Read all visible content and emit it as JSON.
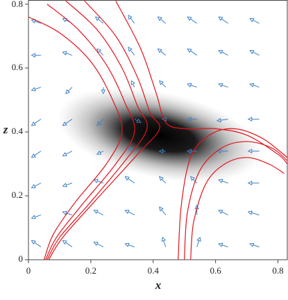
{
  "chart_data": {
    "type": "quiver",
    "xlabel": "x",
    "ylabel": "z",
    "xlim": [
      0,
      0.83
    ],
    "ylim": [
      0,
      0.813
    ],
    "xticks": [
      0,
      0.2,
      0.4,
      0.6,
      0.8
    ],
    "yticks": [
      0,
      0.2,
      0.4,
      0.6,
      0.8
    ],
    "density_peak": {
      "x": 0.42,
      "z": 0.39
    },
    "arrow_color": "#3f80c6",
    "streamline_color": "#e3121b",
    "arrows": {
      "x": [
        0.04,
        0.14,
        0.24,
        0.34,
        0.44,
        0.54,
        0.64,
        0.74,
        0.04,
        0.14,
        0.24,
        0.34,
        0.44,
        0.54,
        0.64,
        0.74,
        0.04,
        0.14,
        0.24,
        0.34,
        0.44,
        0.54,
        0.64,
        0.74,
        0.04,
        0.14,
        0.24,
        0.34,
        0.44,
        0.54,
        0.64,
        0.74,
        0.04,
        0.14,
        0.24,
        0.34,
        0.44,
        0.54,
        0.64,
        0.74,
        0.04,
        0.14,
        0.24,
        0.34,
        0.44,
        0.54,
        0.64,
        0.74,
        0.04,
        0.14,
        0.24,
        0.34,
        0.44,
        0.54,
        0.64,
        0.74,
        0.04,
        0.14,
        0.24,
        0.34,
        0.44,
        0.54,
        0.64,
        0.74
      ],
      "z": [
        0.04,
        0.04,
        0.04,
        0.04,
        0.04,
        0.04,
        0.04,
        0.04,
        0.14,
        0.14,
        0.14,
        0.14,
        0.14,
        0.14,
        0.14,
        0.14,
        0.24,
        0.24,
        0.24,
        0.24,
        0.24,
        0.24,
        0.24,
        0.24,
        0.34,
        0.34,
        0.34,
        0.34,
        0.34,
        0.34,
        0.34,
        0.34,
        0.44,
        0.44,
        0.44,
        0.44,
        0.44,
        0.44,
        0.44,
        0.44,
        0.54,
        0.54,
        0.54,
        0.54,
        0.54,
        0.54,
        0.54,
        0.54,
        0.64,
        0.64,
        0.64,
        0.64,
        0.64,
        0.64,
        0.64,
        0.64,
        0.74,
        0.74,
        0.74,
        0.74,
        0.74,
        0.74,
        0.74,
        0.74
      ],
      "u": [
        -0.03,
        -0.03,
        -0.03,
        -0.03,
        -0.01,
        0.01,
        -0.03,
        -0.03,
        -0.03,
        -0.03,
        -0.03,
        -0.03,
        -0.02,
        0.0,
        -0.03,
        -0.035,
        -0.03,
        -0.03,
        -0.03,
        -0.03,
        -0.02,
        -0.02,
        -0.03,
        -0.035,
        -0.03,
        -0.03,
        -0.02,
        -0.02,
        -0.02,
        -0.03,
        -0.035,
        -0.035,
        -0.03,
        -0.03,
        -0.02,
        0.02,
        -0.01,
        -0.03,
        -0.035,
        -0.035,
        -0.03,
        -0.02,
        0.0,
        -0.01,
        -0.02,
        -0.03,
        -0.03,
        -0.03,
        -0.03,
        -0.03,
        -0.02,
        -0.02,
        -0.025,
        -0.03,
        -0.03,
        -0.03,
        -0.03,
        -0.03,
        -0.025,
        -0.02,
        -0.025,
        -0.03,
        -0.03,
        -0.03
      ],
      "w": [
        0.02,
        0.02,
        0.015,
        0.01,
        0.03,
        0.03,
        0.01,
        0.01,
        -0.01,
        0.01,
        0.015,
        0.015,
        0.025,
        0.03,
        0.015,
        0.01,
        -0.015,
        -0.01,
        0.01,
        0.02,
        0.02,
        0.02,
        0.01,
        0.0,
        -0.02,
        -0.015,
        -0.01,
        0.01,
        0.0,
        0.0,
        0.0,
        0.0,
        -0.02,
        -0.02,
        -0.02,
        -0.01,
        0.0,
        0.0,
        -0.005,
        0.0,
        -0.01,
        -0.02,
        -0.02,
        0.02,
        0.02,
        0.01,
        0.01,
        0.01,
        0.0,
        0.01,
        0.02,
        0.025,
        0.02,
        0.02,
        0.015,
        0.015,
        0.01,
        0.015,
        0.02,
        0.025,
        0.02,
        0.02,
        0.02,
        0.015
      ]
    },
    "streamlines": [
      {
        "x": [
          0,
          0.1,
          0.2,
          0.27,
          0.3,
          0.25,
          0.15,
          0.08,
          0.05
        ],
        "z": [
          0.76,
          0.71,
          0.62,
          0.5,
          0.4,
          0.3,
          0.18,
          0.08,
          0
        ]
      },
      {
        "x": [
          0.06,
          0.16,
          0.25,
          0.31,
          0.34,
          0.28,
          0.17,
          0.09,
          0.055
        ],
        "z": [
          0.8,
          0.72,
          0.61,
          0.49,
          0.4,
          0.3,
          0.17,
          0.07,
          0
        ]
      },
      {
        "x": [
          0.12,
          0.22,
          0.3,
          0.35,
          0.38,
          0.31,
          0.19,
          0.1,
          0.06
        ],
        "z": [
          0.81,
          0.72,
          0.6,
          0.48,
          0.41,
          0.31,
          0.17,
          0.07,
          0
        ]
      },
      {
        "x": [
          0.18,
          0.28,
          0.35,
          0.39,
          0.42,
          0.35,
          0.21,
          0.11,
          0.065
        ],
        "z": [
          0.81,
          0.7,
          0.57,
          0.46,
          0.41,
          0.33,
          0.18,
          0.07,
          0
        ]
      },
      {
        "x": [
          0.28,
          0.36,
          0.41,
          0.44,
          0.5,
          0.6,
          0.7,
          0.8,
          0.83
        ],
        "z": [
          0.81,
          0.66,
          0.52,
          0.43,
          0.41,
          0.41,
          0.39,
          0.33,
          0.3
        ]
      },
      {
        "x": [
          0.48,
          0.49,
          0.52,
          0.58,
          0.66,
          0.75,
          0.83
        ],
        "z": [
          0,
          0.17,
          0.32,
          0.39,
          0.41,
          0.38,
          0.32
        ]
      },
      {
        "x": [
          0.5,
          0.51,
          0.55,
          0.62,
          0.7,
          0.78,
          0.83
        ],
        "z": [
          0,
          0.15,
          0.28,
          0.35,
          0.37,
          0.35,
          0.31
        ]
      },
      {
        "x": [
          0.52,
          0.53,
          0.57,
          0.63,
          0.7,
          0.77,
          0.82
        ],
        "z": [
          0,
          0.12,
          0.24,
          0.3,
          0.32,
          0.3,
          0.27
        ]
      }
    ]
  }
}
